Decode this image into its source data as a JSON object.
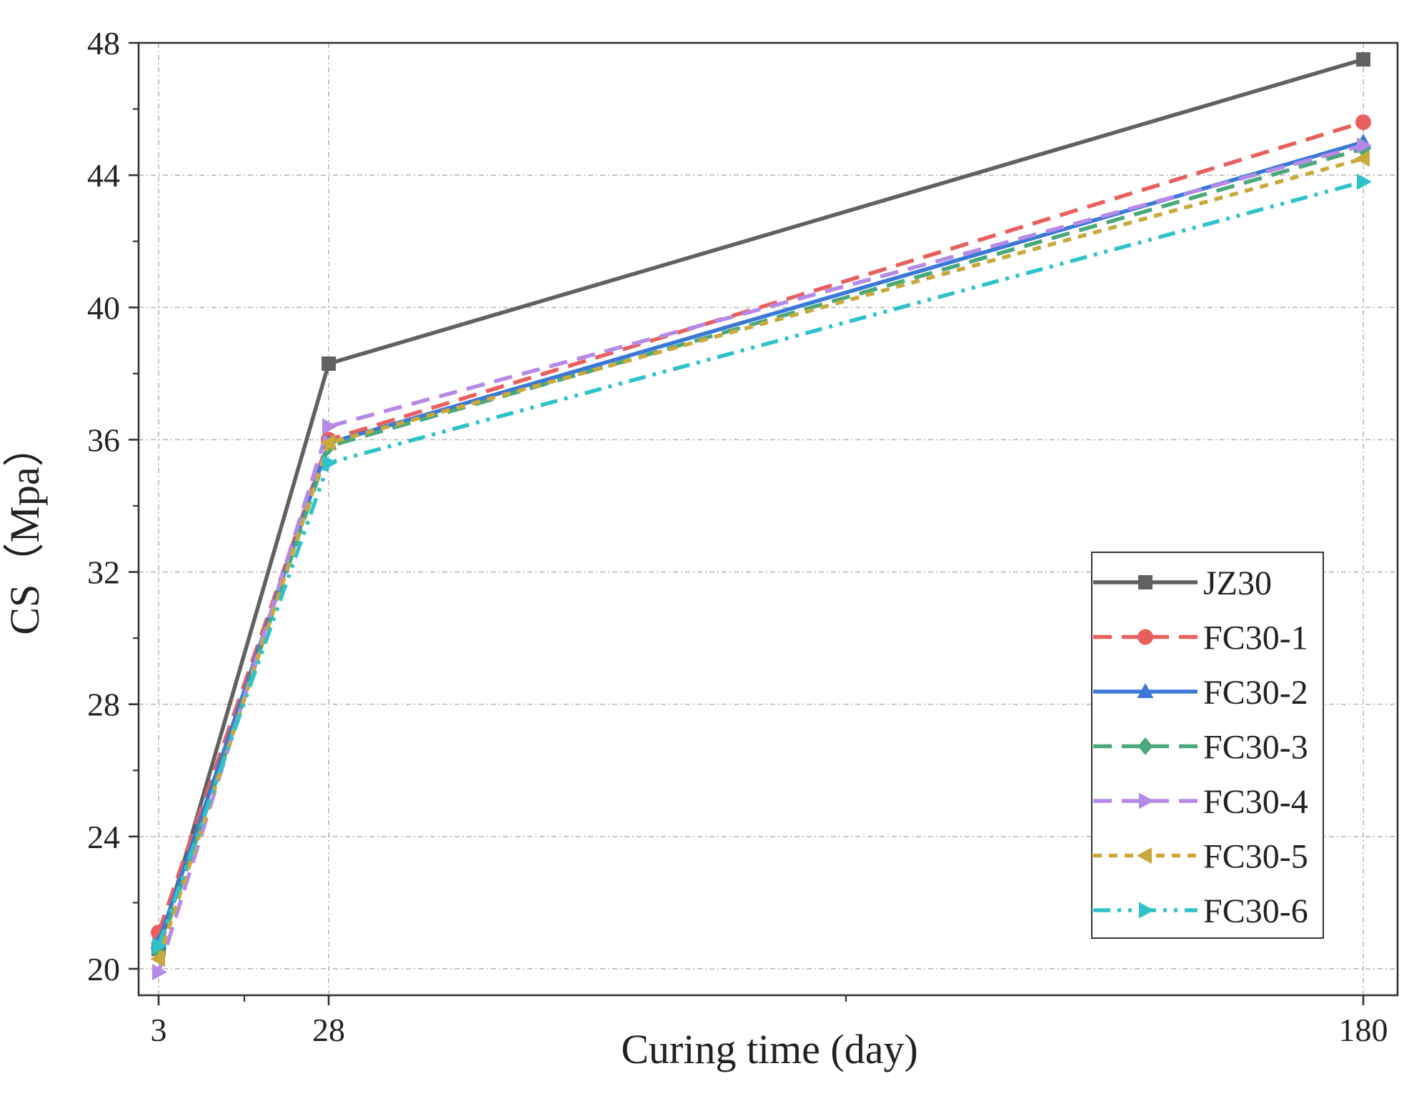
{
  "chart_data": {
    "type": "line",
    "title": "",
    "xlabel": "Curing time (day)",
    "ylabel": "CS（Mpa）",
    "x": [
      3,
      28,
      180
    ],
    "x_tick_labels": [
      "3",
      "28",
      "180"
    ],
    "x_scale": "categorical-unequal",
    "ylim": [
      19.2,
      48
    ],
    "y_ticks": [
      20,
      24,
      28,
      32,
      36,
      40,
      44,
      48
    ],
    "grid": true,
    "legend_position": "bottom-right",
    "series": [
      {
        "name": "JZ30",
        "values": [
          20.6,
          38.3,
          47.5
        ],
        "color": "#616161",
        "marker": "square",
        "dash": "solid"
      },
      {
        "name": "FC30-1",
        "values": [
          21.1,
          36.0,
          45.6
        ],
        "color": "#e8605d",
        "marker": "circle",
        "dash": "dash"
      },
      {
        "name": "FC30-2",
        "values": [
          20.8,
          35.9,
          45.0
        ],
        "color": "#3a78d6",
        "marker": "triangle-up",
        "dash": "solid"
      },
      {
        "name": "FC30-3",
        "values": [
          20.5,
          35.8,
          44.8
        ],
        "color": "#4aa87a",
        "marker": "diamond",
        "dash": "dash"
      },
      {
        "name": "FC30-4",
        "values": [
          19.9,
          36.4,
          44.9
        ],
        "color": "#b58ae6",
        "marker": "triangle-right",
        "dash": "dash"
      },
      {
        "name": "FC30-5",
        "values": [
          20.3,
          35.9,
          44.5
        ],
        "color": "#c9a93c",
        "marker": "triangle-left",
        "dash": "short-dash"
      },
      {
        "name": "FC30-6",
        "values": [
          20.7,
          35.3,
          43.8
        ],
        "color": "#2fc2c9",
        "marker": "triangle-right",
        "dash": "dash-dot-dot"
      }
    ]
  }
}
